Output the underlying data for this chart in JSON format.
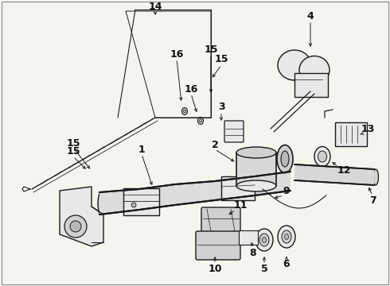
{
  "background_color": "#f5f5f0",
  "line_color": "#1a1a1a",
  "text_color": "#111111",
  "fig_width": 4.9,
  "fig_height": 3.6,
  "dpi": 100,
  "label_fontsize": 9,
  "label_fontweight": "bold",
  "border_lw": 0.8,
  "thin_lw": 0.7,
  "med_lw": 1.2,
  "thick_lw": 2.0,
  "fill_light": "#e8e8e8",
  "fill_mid": "#d0d0d0",
  "fill_dark": "#b8b8b8"
}
